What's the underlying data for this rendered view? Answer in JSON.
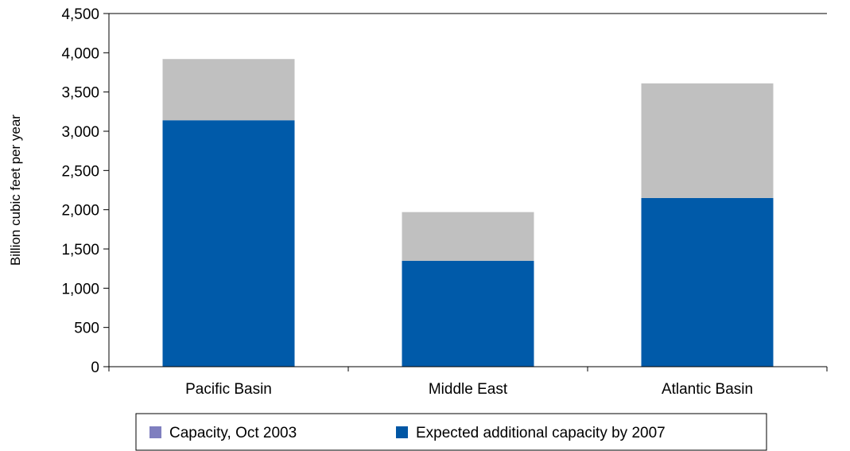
{
  "chart_data": {
    "type": "bar",
    "stacked": true,
    "title": "",
    "xlabel": "",
    "ylabel": "Billion cubic feet per year",
    "ylim": [
      0,
      4500
    ],
    "y_ticks": [
      "0",
      "500",
      "1,000",
      "1,500",
      "2,000",
      "2,500",
      "3,000",
      "3,500",
      "4,000",
      "4,500"
    ],
    "y_tick_values": [
      0,
      500,
      1000,
      1500,
      2000,
      2500,
      3000,
      3500,
      4000,
      4500
    ],
    "categories": [
      "Pacific Basin",
      "Middle East",
      "Atlantic Basin"
    ],
    "series": [
      {
        "name": "Expected additional capacity by 2007",
        "values": [
          3140,
          1350,
          2150
        ],
        "color": "#005aa9",
        "legend_color": "#0056a4"
      },
      {
        "name": "Capacity, Oct 2003",
        "values": [
          780,
          620,
          1460
        ],
        "color": "#c0c0c0",
        "legend_color": "#7f7fbf"
      }
    ],
    "legend_order": [
      1,
      0
    ],
    "legend_position": "bottom",
    "grid": false
  }
}
